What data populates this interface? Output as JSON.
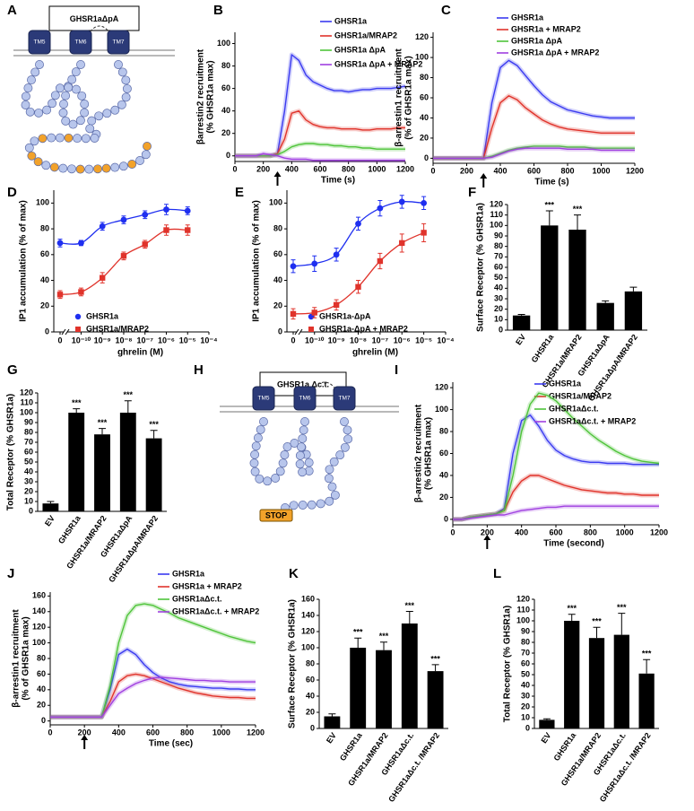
{
  "chart_data": [
    {
      "type": "line",
      "panel": "B",
      "xlabel": "Time (s)",
      "ylabel": [
        "βarrestin2 recruitment",
        "(% GHSR1a max)"
      ],
      "x": [
        0,
        50,
        100,
        150,
        200,
        250,
        300,
        350,
        400,
        450,
        500,
        550,
        600,
        650,
        700,
        750,
        800,
        850,
        900,
        950,
        1000,
        1050,
        1100,
        1150,
        1200
      ],
      "xlim": [
        0,
        1200
      ],
      "xticks": [
        0,
        200,
        400,
        600,
        800,
        1000,
        1200
      ],
      "ylim": [
        -5,
        110
      ],
      "yticks": [
        0,
        20,
        40,
        60,
        80,
        100
      ],
      "arrow_x": 300,
      "series": [
        {
          "name": "GHSR1a",
          "color": "#3b3bf0",
          "values": [
            0,
            0,
            0,
            0,
            0,
            0,
            2,
            40,
            90,
            85,
            72,
            66,
            63,
            60,
            58,
            58,
            57,
            58,
            59,
            59,
            60,
            60,
            60,
            61,
            62
          ]
        },
        {
          "name": "GHSR1a/MRAP2",
          "color": "#e0332b",
          "values": [
            0,
            0,
            0,
            0,
            0,
            0,
            2,
            15,
            38,
            40,
            32,
            28,
            26,
            25,
            25,
            24,
            24,
            24,
            23,
            23,
            24,
            24,
            24,
            25,
            25
          ]
        },
        {
          "name": "GHSR1a ΔpA",
          "color": "#4fc43a",
          "values": [
            0,
            0,
            0,
            0,
            0,
            0,
            1,
            4,
            8,
            10,
            11,
            11,
            10,
            10,
            9,
            9,
            8,
            8,
            7,
            7,
            6,
            6,
            6,
            6,
            6
          ]
        },
        {
          "name": "GHSR1a ΔpA + MRAP2",
          "color": "#a040e0",
          "values": [
            0,
            0,
            0,
            0,
            2,
            1,
            0,
            -2,
            -3,
            -3,
            -3,
            -4,
            -4,
            -4,
            -4,
            -4,
            -4,
            -4,
            -4,
            -4,
            -4,
            -4,
            -4,
            -4,
            -4
          ]
        }
      ]
    },
    {
      "type": "line",
      "panel": "C",
      "xlabel": "Time (s)",
      "ylabel": [
        "β-arrestin1 recruitment",
        "(% of GHSR1a max)"
      ],
      "x": [
        0,
        50,
        100,
        150,
        200,
        250,
        300,
        350,
        400,
        450,
        500,
        550,
        600,
        650,
        700,
        750,
        800,
        850,
        900,
        950,
        1000,
        1050,
        1100,
        1150,
        1200
      ],
      "xlim": [
        0,
        1200
      ],
      "xticks": [
        0,
        200,
        400,
        600,
        800,
        1000,
        1200
      ],
      "ylim": [
        -5,
        125
      ],
      "yticks": [
        0,
        20,
        40,
        60,
        80,
        100,
        120
      ],
      "arrow_x": 300,
      "series": [
        {
          "name": "GHSR1a",
          "color": "#3b3bf0",
          "values": [
            0,
            0,
            0,
            0,
            0,
            0,
            0,
            55,
            90,
            97,
            92,
            82,
            72,
            63,
            56,
            52,
            48,
            46,
            44,
            42,
            41,
            40,
            40,
            40,
            40
          ]
        },
        {
          "name": "GHSR1a + MRAP2",
          "color": "#e0332b",
          "values": [
            0,
            0,
            0,
            0,
            0,
            0,
            0,
            30,
            55,
            62,
            58,
            50,
            44,
            38,
            34,
            31,
            29,
            28,
            27,
            26,
            25,
            25,
            25,
            25,
            25
          ]
        },
        {
          "name": "GHSR1a ΔpA",
          "color": "#4fc43a",
          "values": [
            0,
            0,
            0,
            0,
            0,
            0,
            0,
            2,
            5,
            8,
            10,
            11,
            12,
            12,
            12,
            12,
            11,
            11,
            11,
            10,
            10,
            10,
            10,
            10,
            10
          ]
        },
        {
          "name": "GHSR1a ΔpA + MRAP2",
          "color": "#a040e0",
          "values": [
            0,
            0,
            0,
            0,
            0,
            0,
            0,
            1,
            4,
            7,
            9,
            10,
            10,
            10,
            10,
            10,
            9,
            9,
            9,
            9,
            8,
            8,
            8,
            8,
            8
          ]
        }
      ]
    },
    {
      "type": "dose",
      "panel": "D",
      "xlabel": "ghrelin (M)",
      "ylabel": "IP1 accumulation (% of max)",
      "log_x": true,
      "x": [
        0,
        1e-10,
        1e-09,
        1e-08,
        1e-07,
        1e-06,
        1e-05
      ],
      "xlim": [
        3e-11,
        0.0001
      ],
      "xticks": [
        0,
        {
          "value": 1e-10,
          "label": "10⁻¹⁰"
        },
        {
          "value": 1e-09,
          "label": "10⁻⁹"
        },
        {
          "value": 1e-08,
          "label": "10⁻⁸"
        },
        {
          "value": 1e-07,
          "label": "10⁻⁷"
        },
        {
          "value": 1e-06,
          "label": "10⁻⁶"
        },
        {
          "value": 1e-05,
          "label": "10⁻⁵"
        },
        {
          "value": 0.0001,
          "label": "10⁻⁴"
        }
      ],
      "ylim": [
        0,
        110
      ],
      "yticks": [
        0,
        20,
        40,
        60,
        80,
        100
      ],
      "series": [
        {
          "name": "GHSR1a",
          "color": "#1f2ff0",
          "marker": "circle",
          "values": [
            69,
            69,
            82,
            87,
            91,
            95,
            94
          ],
          "errors": [
            3,
            2,
            3,
            3,
            3,
            4,
            3
          ]
        },
        {
          "name": "GHSR1a/MRAP2",
          "color": "#e0332b",
          "marker": "square",
          "values": [
            29,
            31,
            42,
            59,
            68,
            79,
            79
          ],
          "errors": [
            3,
            3,
            4,
            3,
            3,
            4,
            4
          ]
        }
      ]
    },
    {
      "type": "dose",
      "panel": "E",
      "xlabel": "ghrelin (M)",
      "ylabel": "IP1 accumulation (% of max)",
      "log_x": true,
      "x": [
        0,
        1e-10,
        1e-09,
        1e-08,
        1e-07,
        1e-06,
        1e-05
      ],
      "xlim": [
        3e-11,
        0.0001
      ],
      "xticks": [
        0,
        {
          "value": 1e-10,
          "label": "10⁻¹⁰"
        },
        {
          "value": 1e-09,
          "label": "10⁻⁹"
        },
        {
          "value": 1e-08,
          "label": "10⁻⁸"
        },
        {
          "value": 1e-07,
          "label": "10⁻⁷"
        },
        {
          "value": 1e-06,
          "label": "10⁻⁶"
        },
        {
          "value": 1e-05,
          "label": "10⁻⁵"
        },
        {
          "value": 0.0001,
          "label": "10⁻⁴"
        }
      ],
      "ylim": [
        0,
        110
      ],
      "yticks": [
        0,
        20,
        40,
        60,
        80,
        100
      ],
      "series": [
        {
          "name": "GHSR1a-ΔpA",
          "color": "#1f2ff0",
          "marker": "circle",
          "values": [
            51,
            53,
            60,
            84,
            96,
            101,
            100
          ],
          "errors": [
            5,
            6,
            5,
            5,
            6,
            5,
            5
          ]
        },
        {
          "name": "GHSR1a-ΔpA + MRAP2",
          "color": "#e0332b",
          "marker": "square",
          "values": [
            14,
            15,
            21,
            35,
            55,
            69,
            77
          ],
          "errors": [
            4,
            4,
            4,
            5,
            6,
            7,
            7
          ]
        }
      ]
    },
    {
      "type": "bar",
      "panel": "F",
      "ylabel": "Surface Receptor (% GHSR1a)",
      "color": "#000000",
      "categories": [
        "EV",
        "GHSR1a",
        "GHSR1a/MRAP2",
        "GHSR1aΔpA",
        "GHSR1aΔpA/MRAP2"
      ],
      "values": [
        14,
        100,
        96,
        26,
        37
      ],
      "errors": [
        1,
        14,
        14,
        2,
        4
      ],
      "significance": [
        null,
        "***",
        "***",
        null,
        null
      ],
      "ylim": [
        0,
        120
      ],
      "yticks": [
        0,
        10,
        20,
        30,
        40,
        50,
        60,
        70,
        80,
        90,
        100,
        110,
        120
      ]
    },
    {
      "type": "bar",
      "panel": "G",
      "ylabel": "Total Receptor (% GHSR1a)",
      "color": "#000000",
      "categories": [
        "EV",
        "GHSR1a",
        "GHSR1a/MRAP2",
        "GHSR1aΔpA",
        "GHSR1aΔpA/MRAP2"
      ],
      "values": [
        8,
        100,
        78,
        100,
        74
      ],
      "errors": [
        2,
        4,
        6,
        12,
        8
      ],
      "significance": [
        null,
        "***",
        "***",
        "***",
        "***"
      ],
      "ylim": [
        0,
        120
      ],
      "yticks": [
        0,
        10,
        20,
        30,
        40,
        50,
        60,
        70,
        80,
        90,
        100,
        110,
        120
      ]
    },
    {
      "type": "line",
      "panel": "I",
      "xlabel": "Time (second)",
      "ylabel": [
        "β-arrestin2 recruitment",
        "(% GHSR1a max)"
      ],
      "x": [
        0,
        50,
        100,
        150,
        200,
        250,
        300,
        350,
        400,
        450,
        500,
        550,
        600,
        650,
        700,
        750,
        800,
        850,
        900,
        950,
        1000,
        1050,
        1100,
        1150,
        1200
      ],
      "xlim": [
        0,
        1200
      ],
      "xticks": [
        0,
        200,
        400,
        600,
        800,
        1000,
        1200
      ],
      "ylim": [
        -5,
        125
      ],
      "yticks": [
        0,
        20,
        40,
        60,
        80,
        100,
        120
      ],
      "arrow_x": 200,
      "series": [
        {
          "name": "GHSR1a",
          "color": "#3b3bf0",
          "values": [
            0,
            0,
            2,
            3,
            4,
            5,
            10,
            60,
            90,
            95,
            85,
            72,
            63,
            58,
            55,
            53,
            52,
            52,
            51,
            51,
            51,
            50,
            50,
            50,
            50
          ]
        },
        {
          "name": "GHSR1a/MRAP2",
          "color": "#e0332b",
          "values": [
            0,
            0,
            2,
            3,
            4,
            5,
            8,
            25,
            35,
            40,
            40,
            37,
            34,
            31,
            29,
            27,
            26,
            25,
            24,
            24,
            23,
            23,
            22,
            22,
            22
          ]
        },
        {
          "name": "GHSR1aΔc.t.",
          "color": "#4fc43a",
          "values": [
            0,
            0,
            2,
            3,
            4,
            5,
            8,
            40,
            80,
            105,
            115,
            113,
            108,
            100,
            92,
            85,
            78,
            72,
            67,
            62,
            58,
            55,
            53,
            52,
            51
          ]
        },
        {
          "name": "GHSR1aΔc.t. + MRAP2",
          "color": "#a040e0",
          "values": [
            0,
            0,
            1,
            2,
            3,
            4,
            4,
            6,
            8,
            9,
            10,
            11,
            11,
            12,
            12,
            12,
            12,
            12,
            12,
            12,
            12,
            12,
            12,
            12,
            12
          ]
        }
      ]
    },
    {
      "type": "line",
      "panel": "J",
      "xlabel": "Time (sec)",
      "ylabel": [
        "β-arrestin1 recruitment",
        "(% of GHSR1a max)"
      ],
      "x": [
        0,
        50,
        100,
        150,
        200,
        250,
        300,
        350,
        400,
        450,
        500,
        550,
        600,
        650,
        700,
        750,
        800,
        850,
        900,
        950,
        1000,
        1050,
        1100,
        1150,
        1200
      ],
      "xlim": [
        0,
        1200
      ],
      "xticks": [
        0,
        200,
        400,
        600,
        800,
        1000,
        1200
      ],
      "ylim": [
        -5,
        165
      ],
      "yticks": [
        0,
        20,
        40,
        60,
        80,
        100,
        120,
        140,
        160
      ],
      "arrow_x": 200,
      "series": [
        {
          "name": "GHSR1a",
          "color": "#3b3bf0",
          "values": [
            5,
            5,
            5,
            5,
            5,
            5,
            5,
            40,
            85,
            92,
            85,
            72,
            62,
            55,
            50,
            47,
            45,
            44,
            43,
            42,
            42,
            41,
            41,
            40,
            40
          ]
        },
        {
          "name": "GHSR1a + MRAP2",
          "color": "#e0332b",
          "values": [
            5,
            5,
            5,
            5,
            5,
            5,
            5,
            25,
            50,
            58,
            60,
            58,
            54,
            50,
            46,
            42,
            39,
            36,
            34,
            32,
            31,
            30,
            30,
            29,
            29
          ]
        },
        {
          "name": "GHSR1aΔc.t.",
          "color": "#4fc43a",
          "values": [
            5,
            5,
            5,
            5,
            5,
            5,
            5,
            45,
            100,
            135,
            148,
            150,
            148,
            143,
            138,
            132,
            128,
            124,
            120,
            116,
            112,
            108,
            105,
            102,
            100
          ]
        },
        {
          "name": "GHSR1aΔc.t. + MRAP2",
          "color": "#a040e0",
          "values": [
            5,
            5,
            5,
            5,
            5,
            5,
            5,
            20,
            35,
            42,
            48,
            52,
            55,
            56,
            55,
            54,
            53,
            52,
            52,
            51,
            51,
            50,
            50,
            50,
            50
          ]
        }
      ]
    },
    {
      "type": "bar",
      "panel": "K",
      "ylabel": "Surface Receptor (% GHSR1a)",
      "color": "#000000",
      "categories": [
        "EV",
        "GHSR1a",
        "GHSR1a/MRAP2",
        "GHSR1aΔc.t.",
        "GHSR1aΔc.t. /MRAP2"
      ],
      "values": [
        15,
        100,
        97,
        130,
        71
      ],
      "errors": [
        3,
        12,
        10,
        15,
        8
      ],
      "significance": [
        null,
        "***",
        "***",
        "***",
        "***"
      ],
      "ylim": [
        0,
        160
      ],
      "yticks": [
        0,
        20,
        40,
        60,
        80,
        100,
        120,
        140,
        160
      ]
    },
    {
      "type": "bar",
      "panel": "L",
      "ylabel": "Total Receptor (% GHSR1a)",
      "color": "#000000",
      "categories": [
        "EV",
        "GHSR1a",
        "GHSR1a/MRAP2",
        "GHSR1aΔc.t.",
        "GHSR1aΔc.t. /MRAP2"
      ],
      "values": [
        8,
        100,
        84,
        87,
        51
      ],
      "errors": [
        1,
        6,
        10,
        20,
        13
      ],
      "significance": [
        null,
        "***",
        "***",
        "***",
        "***"
      ],
      "ylim": [
        0,
        120
      ],
      "yticks": [
        0,
        10,
        20,
        30,
        40,
        50,
        60,
        70,
        80,
        90,
        100,
        110,
        120
      ]
    }
  ],
  "diagrams": [
    {
      "panel": "A",
      "title": "GHSR1aΔpA",
      "helices": [
        "TM5",
        "TM6",
        "TM7"
      ]
    },
    {
      "panel": "H",
      "title": "GHSR1a Δc.t.",
      "helices": [
        "TM5",
        "TM6",
        "TM7"
      ],
      "stop": "STOP"
    }
  ]
}
